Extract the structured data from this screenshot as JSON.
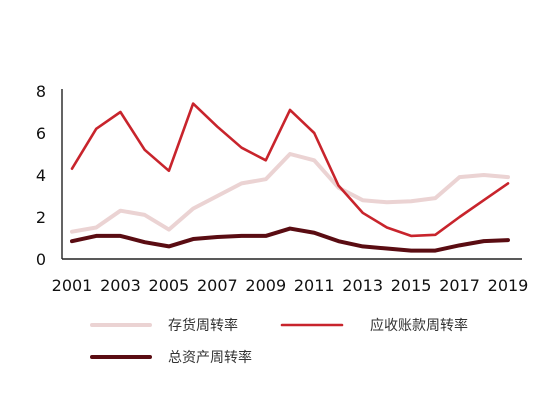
{
  "chart_data": {
    "type": "line",
    "x": [
      2001,
      2002,
      2003,
      2004,
      2005,
      2006,
      2007,
      2008,
      2009,
      2010,
      2011,
      2012,
      2013,
      2014,
      2015,
      2016,
      2017,
      2018,
      2019
    ],
    "x_tick_labels": [
      "2001",
      "2003",
      "2005",
      "2007",
      "2009",
      "2011",
      "2013",
      "2015",
      "2017",
      "2019"
    ],
    "y_tick_labels": [
      "0",
      "2",
      "4",
      "6",
      "8"
    ],
    "ylim": [
      0,
      8
    ],
    "grid": false,
    "legend_position": "bottom",
    "series": [
      {
        "name": "存货周转率",
        "color": "#ebd3d3",
        "values": [
          1.3,
          1.5,
          2.3,
          2.1,
          1.4,
          2.4,
          3.0,
          3.6,
          3.8,
          5.0,
          4.7,
          3.4,
          2.8,
          2.7,
          2.75,
          2.9,
          3.9,
          4.0,
          3.9
        ]
      },
      {
        "name": "应收账款周转率",
        "color": "#c8242c",
        "values": [
          4.3,
          6.2,
          7.0,
          5.2,
          4.2,
          7.4,
          6.3,
          5.3,
          4.7,
          7.1,
          6.0,
          3.5,
          2.2,
          1.5,
          1.1,
          1.15,
          2.0,
          2.8,
          3.6
        ]
      },
      {
        "name": "总资产周转率",
        "color": "#5a0c12",
        "values": [
          0.85,
          1.1,
          1.1,
          0.8,
          0.6,
          0.95,
          1.05,
          1.1,
          1.1,
          1.45,
          1.25,
          0.85,
          0.6,
          0.5,
          0.4,
          0.4,
          0.65,
          0.85,
          0.9
        ]
      }
    ]
  }
}
